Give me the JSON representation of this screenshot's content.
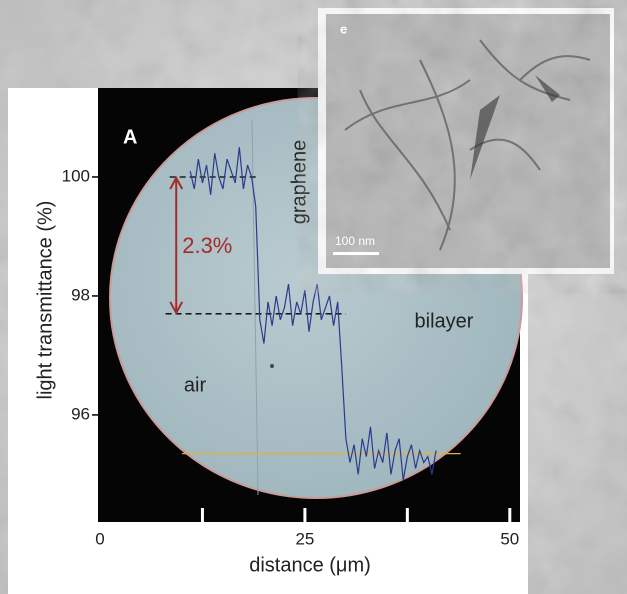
{
  "chart_data": {
    "type": "line",
    "panel_label": "A",
    "ylabel": "light  transmittance  (%)",
    "xlabel": "distance (μm)",
    "region_labels": [
      "air",
      "graphene",
      "bilayer"
    ],
    "x": [
      11,
      11.5,
      12,
      12.5,
      13,
      13.5,
      14,
      14.5,
      15,
      15.5,
      16,
      16.5,
      17,
      17.5,
      18,
      18.5,
      19,
      19.5,
      20,
      20.5,
      21,
      21.5,
      22,
      22.5,
      23,
      23.5,
      24,
      24.5,
      25,
      25.5,
      26,
      26.5,
      27,
      27.5,
      28,
      28.5,
      29,
      29.5,
      30,
      30.5,
      31,
      31.5,
      32,
      32.5,
      33,
      33.5,
      34,
      34.5,
      35,
      35.5,
      36,
      36.5,
      37,
      37.5,
      38,
      38.5,
      39,
      39.5,
      40,
      40.5,
      41
    ],
    "series": [
      {
        "color": "#2b3a8c",
        "values": [
          100.1,
          99.8,
          100.3,
          99.9,
          100.2,
          99.7,
          100.4,
          100.0,
          99.8,
          100.3,
          100.1,
          99.9,
          100.5,
          99.8,
          100.2,
          100.0,
          99.5,
          97.6,
          97.2,
          97.9,
          97.5,
          98.0,
          97.6,
          97.8,
          98.2,
          97.5,
          97.9,
          97.7,
          98.1,
          97.4,
          97.9,
          98.2,
          97.6,
          97.8,
          98.0,
          97.5,
          97.9,
          96.8,
          95.6,
          95.2,
          95.5,
          95.0,
          95.6,
          95.3,
          95.8,
          95.1,
          95.4,
          95.2,
          95.7,
          95.0,
          95.4,
          95.6,
          94.9,
          95.3,
          95.5,
          95.1,
          95.4,
          95.2,
          95.3,
          95.0,
          95.4
        ]
      }
    ],
    "xlim": [
      0,
      51
    ],
    "ylim": [
      94.2,
      101.5
    ],
    "xticks": [
      0,
      25,
      50
    ],
    "xminor_ticks": [
      12.5,
      37.5
    ],
    "yticks": [
      96,
      98,
      100
    ],
    "reference_lines": [
      {
        "y": 100,
        "x": [
          8.5,
          19.3
        ],
        "color": "#000000",
        "dashed": true
      },
      {
        "y": 97.7,
        "x": [
          8,
          30
        ],
        "color": "#000000",
        "dashed": true
      },
      {
        "y": 95.35,
        "x": [
          10,
          44
        ],
        "color": "#e0b040",
        "dashed": false
      }
    ],
    "annotation": {
      "text": "2.3%",
      "from": 100,
      "to": 97.7,
      "x": 9.3,
      "color": "#a52a2a"
    },
    "inset": {
      "label": "e",
      "scale_bar": "100 nm"
    }
  }
}
